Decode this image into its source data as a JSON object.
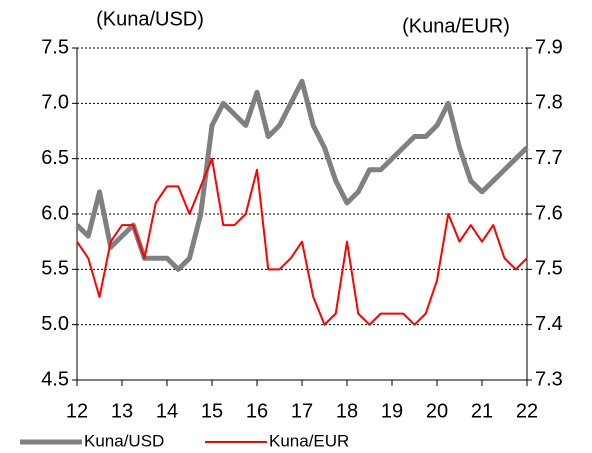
{
  "chart_data": {
    "type": "line",
    "y_label": "(Kuna/USD)",
    "y2_label": "(Kuna/EUR)",
    "x": [
      12,
      12.25,
      12.5,
      12.75,
      13,
      13.25,
      13.5,
      13.75,
      14,
      14.25,
      14.5,
      14.75,
      15,
      15.25,
      15.5,
      15.75,
      16,
      16.25,
      16.5,
      16.75,
      17,
      17.25,
      17.5,
      17.75,
      18,
      18.25,
      18.5,
      18.75,
      19,
      19.25,
      19.5,
      19.75,
      20,
      20.25,
      20.5,
      20.75,
      21,
      21.25,
      21.5,
      21.75,
      22
    ],
    "series": [
      {
        "name": "Kuna/USD",
        "color": "#808080",
        "axis": "y",
        "values": [
          5.9,
          5.8,
          6.2,
          5.7,
          5.8,
          5.9,
          5.6,
          5.6,
          5.6,
          5.5,
          5.6,
          6.0,
          6.8,
          7.0,
          6.9,
          6.8,
          7.1,
          6.7,
          6.8,
          7.0,
          7.2,
          6.8,
          6.6,
          6.3,
          6.1,
          6.2,
          6.4,
          6.4,
          6.5,
          6.6,
          6.7,
          6.7,
          6.8,
          7.0,
          6.6,
          6.3,
          6.2,
          6.3,
          6.4,
          6.5,
          6.6
        ]
      },
      {
        "name": "Kuna/EUR",
        "color": "#ff0000",
        "axis": "y2",
        "values": [
          7.55,
          7.52,
          7.45,
          7.55,
          7.58,
          7.58,
          7.52,
          7.62,
          7.65,
          7.65,
          7.6,
          7.65,
          7.7,
          7.58,
          7.58,
          7.6,
          7.68,
          7.5,
          7.5,
          7.52,
          7.55,
          7.45,
          7.4,
          7.42,
          7.55,
          7.42,
          7.4,
          7.42,
          7.42,
          7.42,
          7.4,
          7.42,
          7.48,
          7.6,
          7.55,
          7.58,
          7.55,
          7.58,
          7.52,
          7.5,
          7.52
        ]
      }
    ],
    "xlim": [
      12,
      22
    ],
    "xticks": [
      12,
      13,
      14,
      15,
      16,
      17,
      18,
      19,
      20,
      21,
      22
    ],
    "ylim": [
      4.5,
      7.5
    ],
    "yticks": [
      4.5,
      {
        "value": 5,
        "label": "5.0"
      },
      5.5,
      {
        "value": 6,
        "label": "6.0"
      },
      6.5,
      {
        "value": 7,
        "label": "7.0"
      },
      7.5
    ],
    "y2lim": [
      7.3,
      7.9
    ],
    "y2ticks": [
      7.3,
      7.4,
      7.5,
      7.6,
      7.7,
      7.8,
      7.9
    ],
    "grid": true,
    "legend": "bottom"
  }
}
